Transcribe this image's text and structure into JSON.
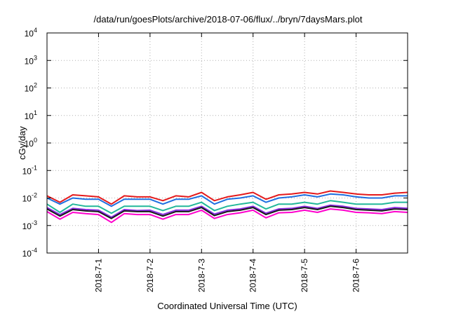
{
  "chart_data": {
    "type": "line",
    "title": "/data/run/goesPlots/archive/2018-07-06/flux/../bryn/7daysMars.plot",
    "xlabel": "Coordinated Universal Time (UTC)",
    "ylabel": "cGy/day",
    "yscale": "log",
    "ylim": [
      0.0001,
      10000
    ],
    "y_ticks": [
      {
        "base": "10",
        "exp": "4",
        "value": 10000
      },
      {
        "base": "10",
        "exp": "3",
        "value": 1000
      },
      {
        "base": "10",
        "exp": "2",
        "value": 100
      },
      {
        "base": "10",
        "exp": "1",
        "value": 10
      },
      {
        "base": "10",
        "exp": "0",
        "value": 1
      },
      {
        "base": "10",
        "exp": "-1",
        "value": 0.1
      },
      {
        "base": "10",
        "exp": "-2",
        "value": 0.01
      },
      {
        "base": "10",
        "exp": "-3",
        "value": 0.001
      },
      {
        "base": "10",
        "exp": "-4",
        "value": 0.0001
      }
    ],
    "xlim": [
      "2018-06-30T00:00",
      "2018-07-07T00:00"
    ],
    "x_ticks": [
      {
        "label": "2018-7-1",
        "value": "2018-07-01T00:00"
      },
      {
        "label": "2018-7-2",
        "value": "2018-07-02T00:00"
      },
      {
        "label": "2018-7-3",
        "value": "2018-07-03T00:00"
      },
      {
        "label": "2018-7-4",
        "value": "2018-07-04T00:00"
      },
      {
        "label": "2018-7-5",
        "value": "2018-07-05T00:00"
      },
      {
        "label": "2018-7-6",
        "value": "2018-07-06T00:00"
      }
    ],
    "grid": true,
    "legend": "none",
    "x": [
      "2018-06-30T00:00",
      "2018-06-30T06:00",
      "2018-06-30T12:00",
      "2018-06-30T18:00",
      "2018-07-01T00:00",
      "2018-07-01T06:00",
      "2018-07-01T12:00",
      "2018-07-01T18:00",
      "2018-07-02T00:00",
      "2018-07-02T06:00",
      "2018-07-02T12:00",
      "2018-07-02T18:00",
      "2018-07-03T00:00",
      "2018-07-03T06:00",
      "2018-07-03T12:00",
      "2018-07-03T18:00",
      "2018-07-04T00:00",
      "2018-07-04T06:00",
      "2018-07-04T12:00",
      "2018-07-04T18:00",
      "2018-07-05T00:00",
      "2018-07-05T06:00",
      "2018-07-05T12:00",
      "2018-07-05T18:00",
      "2018-07-06T00:00",
      "2018-07-06T06:00",
      "2018-07-06T12:00",
      "2018-07-06T18:00",
      "2018-07-07T00:00"
    ],
    "series": [
      {
        "color": "#e41a1c",
        "values": [
          0.012,
          0.007,
          0.013,
          0.012,
          0.011,
          0.006,
          0.012,
          0.011,
          0.011,
          0.008,
          0.012,
          0.011,
          0.016,
          0.008,
          0.011,
          0.013,
          0.016,
          0.009,
          0.013,
          0.014,
          0.016,
          0.014,
          0.018,
          0.016,
          0.014,
          0.013,
          0.013,
          0.015,
          0.016
        ]
      },
      {
        "color": "#1f6fe0",
        "values": [
          0.01,
          0.006,
          0.01,
          0.009,
          0.009,
          0.005,
          0.009,
          0.009,
          0.009,
          0.006,
          0.009,
          0.009,
          0.012,
          0.006,
          0.009,
          0.01,
          0.012,
          0.007,
          0.01,
          0.011,
          0.013,
          0.011,
          0.014,
          0.013,
          0.011,
          0.01,
          0.01,
          0.012,
          0.012
        ]
      },
      {
        "color": "#22b89a",
        "values": [
          0.006,
          0.003,
          0.006,
          0.005,
          0.005,
          0.0028,
          0.005,
          0.005,
          0.005,
          0.0035,
          0.005,
          0.005,
          0.007,
          0.0035,
          0.005,
          0.006,
          0.007,
          0.004,
          0.006,
          0.006,
          0.007,
          0.006,
          0.008,
          0.007,
          0.006,
          0.006,
          0.006,
          0.007,
          0.007
        ]
      },
      {
        "color": "#8a2be2",
        "values": [
          0.0045,
          0.0025,
          0.0042,
          0.0038,
          0.0036,
          0.002,
          0.0038,
          0.0035,
          0.0036,
          0.0025,
          0.0036,
          0.0036,
          0.005,
          0.0026,
          0.0036,
          0.004,
          0.005,
          0.0028,
          0.004,
          0.0042,
          0.005,
          0.0042,
          0.0055,
          0.005,
          0.0042,
          0.004,
          0.0038,
          0.0045,
          0.0042
        ]
      },
      {
        "color": "#1a1a1a",
        "values": [
          0.004,
          0.0022,
          0.0038,
          0.0034,
          0.0032,
          0.0018,
          0.0034,
          0.0032,
          0.0032,
          0.0022,
          0.0032,
          0.0032,
          0.0045,
          0.0023,
          0.0032,
          0.0036,
          0.0045,
          0.0025,
          0.0036,
          0.0038,
          0.0045,
          0.0038,
          0.005,
          0.0045,
          0.0038,
          0.0036,
          0.0034,
          0.004,
          0.0038
        ]
      },
      {
        "color": "#ff00cc",
        "values": [
          0.0032,
          0.0017,
          0.003,
          0.0027,
          0.0025,
          0.0013,
          0.0027,
          0.0025,
          0.0025,
          0.0017,
          0.0025,
          0.0025,
          0.0036,
          0.0018,
          0.0025,
          0.0029,
          0.0036,
          0.0019,
          0.0029,
          0.003,
          0.0036,
          0.003,
          0.004,
          0.0036,
          0.003,
          0.0029,
          0.0027,
          0.0032,
          0.003
        ]
      }
    ]
  }
}
